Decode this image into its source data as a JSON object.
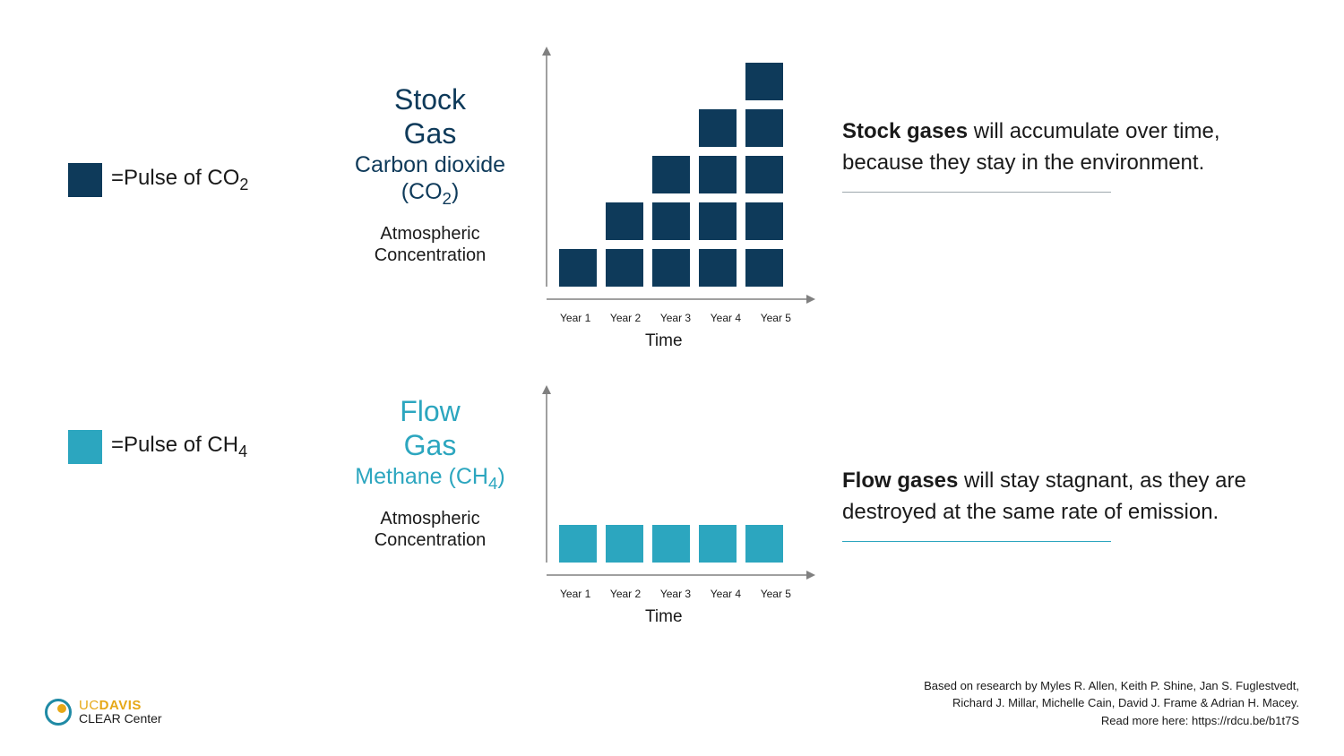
{
  "colors": {
    "co2": "#0e3a5a",
    "ch4": "#2ca6bf",
    "axis": "#808080",
    "text": "#1a1a1a",
    "rule_co2": "#9ea7ad",
    "rule_ch4": "#2ca6bf",
    "bg": "#ffffff"
  },
  "block": {
    "size": 42,
    "gap": 10
  },
  "legend": {
    "co2": {
      "label_pre": "=Pulse of CO",
      "label_sub": "2"
    },
    "ch4": {
      "label_pre": "=Pulse of CH",
      "label_sub": "4"
    }
  },
  "stock": {
    "title_line1": "Stock",
    "title_line2": "Gas",
    "chem_pre": "Carbon dioxide",
    "chem_paren_pre": "(CO",
    "chem_paren_sub": "2",
    "chem_paren_post": ")",
    "ylabel_l1": "Atmospheric",
    "ylabel_l2": "Concentration",
    "xlabel": "Time",
    "x_ticks": [
      "Year 1",
      "Year 2",
      "Year 3",
      "Year 4",
      "Year 5"
    ],
    "stacks": [
      1,
      2,
      3,
      4,
      5
    ],
    "desc_bold": "Stock gases",
    "desc_rest": " will accumulate over time, because they stay in the environment."
  },
  "flow": {
    "title_line1": "Flow",
    "title_line2": "Gas",
    "chem_pre": "Methane (CH",
    "chem_sub": "4",
    "chem_post": ")",
    "ylabel_l1": "Atmospheric",
    "ylabel_l2": "Concentration",
    "xlabel": "Time",
    "x_ticks": [
      "Year 1",
      "Year 2",
      "Year 3",
      "Year 4",
      "Year 5"
    ],
    "stacks": [
      1,
      1,
      1,
      1,
      1
    ],
    "desc_bold": "Flow gases",
    "desc_rest": " will stay stagnant, as they are destroyed at the same rate of emission."
  },
  "logo": {
    "uc": "UC",
    "davis": "DAVIS",
    "clear": "CLEAR Center"
  },
  "credit": {
    "line1": "Based on research by Myles R. Allen, Keith P. Shine, Jan S. Fuglestvedt,",
    "line2": "Richard J. Millar, Michelle Cain, David J. Frame & Adrian H. Macey.",
    "line3": "Read more here: https://rdcu.be/b1t7S"
  }
}
